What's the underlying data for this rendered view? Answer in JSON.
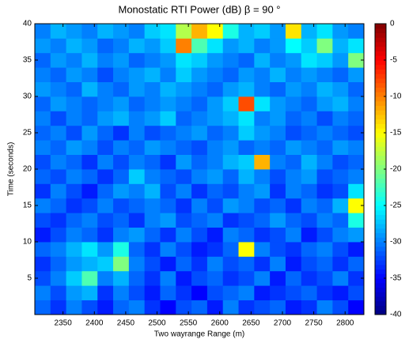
{
  "chart_data": {
    "type": "heatmap",
    "title": "Monostatic RTI Power (dB)  β = 90 °",
    "x_label": "Two wayrange Range (m)",
    "y_label": "Time (seconds)",
    "xlim": [
      2305,
      2830
    ],
    "xticks": [
      2350,
      2400,
      2450,
      2500,
      2550,
      2600,
      2650,
      2700,
      2750,
      2800
    ],
    "ylim": [
      0,
      40
    ],
    "yticks": [
      5,
      10,
      15,
      20,
      25,
      30,
      35,
      40
    ],
    "colormap": "jet",
    "clim": [
      -40,
      0
    ],
    "cticks": [
      0,
      -5,
      -10,
      -15,
      -20,
      -25,
      -30,
      -35,
      -40
    ],
    "values": [
      [
        -31,
        -33,
        -30,
        -32,
        -34,
        -31,
        -30,
        -33,
        -35,
        -32,
        -31,
        -34,
        -30,
        -33,
        -32,
        -31,
        -34,
        -33,
        -30,
        -32,
        -35
      ],
      [
        -30,
        -32,
        -29,
        -28,
        -33,
        -30,
        -32,
        -34,
        -31,
        -33,
        -35,
        -32,
        -31,
        -30,
        -34,
        -33,
        -32,
        -31,
        -33,
        -34,
        -32
      ],
      [
        -32,
        -30,
        -27,
        -22,
        -30,
        -28,
        -31,
        -33,
        -30,
        -34,
        -32,
        -31,
        -33,
        -32,
        -30,
        -34,
        -31,
        -33,
        -32,
        -30,
        -33
      ],
      [
        -33,
        -31,
        -29,
        -28,
        -27,
        -20,
        -30,
        -32,
        -34,
        -31,
        -33,
        -30,
        -32,
        -31,
        -33,
        -30,
        -34,
        -32,
        -31,
        -33,
        -31
      ],
      [
        -31,
        -30,
        -28,
        -26,
        -29,
        -24,
        -31,
        -33,
        -30,
        -32,
        -34,
        -33,
        -31,
        -15,
        -30,
        -32,
        -33,
        -31,
        -30,
        -32,
        -34
      ],
      [
        -34,
        -32,
        -30,
        -31,
        -33,
        -30,
        -29,
        -31,
        -33,
        -30,
        -32,
        -34,
        -30,
        -31,
        -33,
        -32,
        -30,
        -34,
        -32,
        -30,
        -29
      ],
      [
        -32,
        -33,
        -31,
        -30,
        -32,
        -31,
        -33,
        -30,
        -29,
        -32,
        -31,
        -30,
        -33,
        -32,
        -31,
        -29,
        -31,
        -32,
        -30,
        -31,
        -24
      ],
      [
        -30,
        -31,
        -33,
        -32,
        -30,
        -32,
        -31,
        -30,
        -31,
        -33,
        -30,
        -32,
        -29,
        -30,
        -32,
        -31,
        -33,
        -30,
        -31,
        -28,
        -15
      ],
      [
        -33,
        -30,
        -32,
        -34,
        -31,
        -29,
        -30,
        -28,
        -32,
        -30,
        -33,
        -31,
        -32,
        -30,
        -29,
        -33,
        -30,
        -31,
        -33,
        -32,
        -26
      ],
      [
        -31,
        -32,
        -30,
        -31,
        -33,
        -31,
        -27,
        -30,
        -31,
        -32,
        -30,
        -29,
        -31,
        -28,
        -30,
        -32,
        -30,
        -29,
        -32,
        -31,
        -30
      ],
      [
        -32,
        -30,
        -31,
        -33,
        -30,
        -32,
        -30,
        -31,
        -33,
        -29,
        -31,
        -30,
        -28,
        -27,
        -12,
        -30,
        -31,
        -28,
        -30,
        -32,
        -31
      ],
      [
        -30,
        -31,
        -29,
        -30,
        -32,
        -30,
        -31,
        -29,
        -30,
        -31,
        -32,
        -30,
        -29,
        -31,
        -30,
        -31,
        -29,
        -30,
        -31,
        -29,
        -30
      ],
      [
        -31,
        -30,
        -32,
        -29,
        -31,
        -33,
        -30,
        -32,
        -31,
        -30,
        -29,
        -31,
        -30,
        -27,
        -29,
        -30,
        -32,
        -31,
        -30,
        -31,
        -32
      ],
      [
        -30,
        -32,
        -30,
        -31,
        -29,
        -28,
        -30,
        -29,
        -27,
        -31,
        -30,
        -29,
        -28,
        -26,
        -30,
        -29,
        -31,
        -30,
        -32,
        -30,
        -31
      ],
      [
        -31,
        -29,
        -30,
        -31,
        -30,
        -29,
        -31,
        -30,
        -29,
        -30,
        -31,
        -29,
        -27,
        -8,
        -26,
        -29,
        -30,
        -31,
        -29,
        -28,
        -30
      ],
      [
        -29,
        -30,
        -31,
        -28,
        -30,
        -31,
        -29,
        -30,
        -28,
        -29,
        -30,
        -31,
        -29,
        -28,
        -30,
        -31,
        -29,
        -30,
        -28,
        -29,
        -31
      ],
      [
        -30,
        -31,
        -29,
        -30,
        -32,
        -30,
        -29,
        -28,
        -30,
        -27,
        -29,
        -30,
        -31,
        -29,
        -30,
        -28,
        -30,
        -29,
        -30,
        -31,
        -29
      ],
      [
        -31,
        -29,
        -30,
        -28,
        -30,
        -29,
        -31,
        -30,
        -29,
        -26,
        -27,
        -29,
        -30,
        -31,
        -28,
        -30,
        -29,
        -26,
        -27,
        -29,
        -20
      ],
      [
        -29,
        -30,
        -28,
        -29,
        -31,
        -30,
        -28,
        -29,
        -27,
        -10,
        -22,
        -26,
        -29,
        -28,
        -30,
        -29,
        -25,
        -27,
        -20,
        -28,
        -26
      ],
      [
        -30,
        -28,
        -29,
        -30,
        -28,
        -29,
        -30,
        -27,
        -26,
        -18,
        -12,
        -15,
        -24,
        -28,
        -27,
        -29,
        -14,
        -28,
        -26,
        -29,
        -30
      ]
    ]
  }
}
